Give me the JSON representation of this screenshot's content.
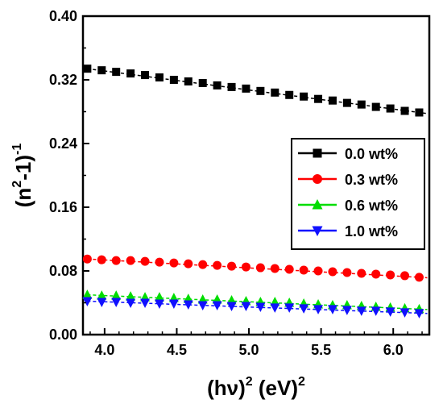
{
  "chart_data": {
    "type": "scatter",
    "title": "",
    "xlabel": {
      "base1": "(hν)",
      "sup1": "2",
      "base2": " (eV)",
      "sup2": "2"
    },
    "ylabel": {
      "base1": "(n",
      "sup1": "2",
      "base2": "-1)",
      "sup2": "-1"
    },
    "xlim": [
      3.85,
      6.25
    ],
    "ylim": [
      0.0,
      0.4
    ],
    "xticks": [
      "4.0",
      "4.5",
      "5.0",
      "5.5",
      "6.0"
    ],
    "xtick_values": [
      4.0,
      4.5,
      5.0,
      5.5,
      6.0
    ],
    "yticks": [
      "0.00",
      "0.08",
      "0.16",
      "0.24",
      "0.32",
      "0.40"
    ],
    "ytick_values": [
      0.0,
      0.08,
      0.16,
      0.24,
      0.32,
      0.4
    ],
    "grid": false,
    "legend_position": "center-right",
    "x_start": 3.88,
    "x_step": 0.1,
    "series": [
      {
        "name": "0.0 wt%",
        "marker": "square",
        "color": "#000000",
        "values": [
          0.334,
          0.332,
          0.33,
          0.328,
          0.326,
          0.323,
          0.32,
          0.318,
          0.316,
          0.313,
          0.311,
          0.309,
          0.306,
          0.304,
          0.301,
          0.299,
          0.296,
          0.294,
          0.291,
          0.289,
          0.286,
          0.284,
          0.281,
          0.279
        ]
      },
      {
        "name": "0.3 wt%",
        "marker": "circle",
        "color": "#ff0000",
        "values": [
          0.095,
          0.094,
          0.093,
          0.093,
          0.092,
          0.091,
          0.09,
          0.089,
          0.088,
          0.087,
          0.086,
          0.085,
          0.084,
          0.083,
          0.082,
          0.081,
          0.08,
          0.079,
          0.078,
          0.077,
          0.076,
          0.075,
          0.074,
          0.072
        ]
      },
      {
        "name": "0.6 wt%",
        "marker": "triangle-up",
        "color": "#00dd00",
        "values": [
          0.05,
          0.049,
          0.049,
          0.048,
          0.047,
          0.047,
          0.046,
          0.045,
          0.044,
          0.044,
          0.043,
          0.042,
          0.041,
          0.041,
          0.04,
          0.039,
          0.038,
          0.037,
          0.037,
          0.036,
          0.035,
          0.034,
          0.033,
          0.032
        ]
      },
      {
        "name": "1.0 wt%",
        "marker": "triangle-down",
        "color": "#1010ff",
        "values": [
          0.042,
          0.041,
          0.041,
          0.04,
          0.04,
          0.039,
          0.039,
          0.038,
          0.037,
          0.037,
          0.036,
          0.036,
          0.035,
          0.034,
          0.034,
          0.033,
          0.032,
          0.032,
          0.031,
          0.03,
          0.03,
          0.029,
          0.028,
          0.027
        ]
      }
    ]
  }
}
